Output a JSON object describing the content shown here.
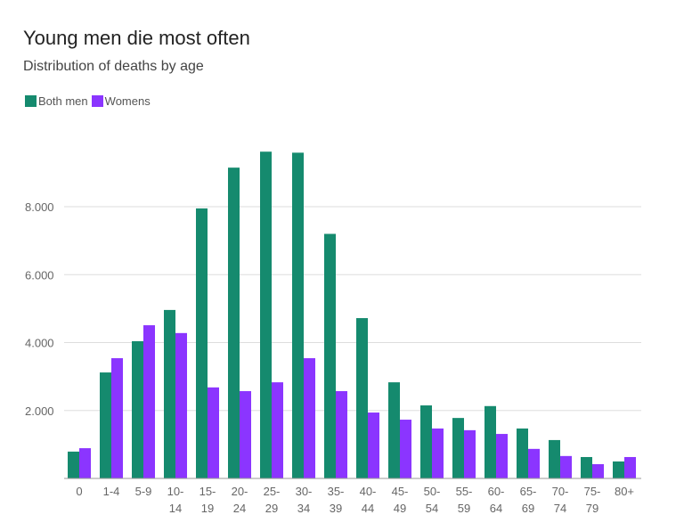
{
  "chart_data": {
    "type": "bar",
    "title": "Young men die most often",
    "subtitle": "Distribution of deaths by age",
    "xlabel": "",
    "ylabel": "",
    "ylim": [
      0,
      10000
    ],
    "yticks": [
      2000,
      4000,
      6000,
      8000
    ],
    "ytick_labels": [
      "2.000",
      "4.000",
      "6.000",
      "8.000"
    ],
    "grid": true,
    "legend_position": "top-left",
    "categories": [
      [
        "0"
      ],
      [
        "1-4"
      ],
      [
        "5-9"
      ],
      [
        "10-",
        "14"
      ],
      [
        "15-",
        "19"
      ],
      [
        "20-",
        "24"
      ],
      [
        "25-",
        "29"
      ],
      [
        "30-",
        "34"
      ],
      [
        "35-",
        "39"
      ],
      [
        "40-",
        "44"
      ],
      [
        "45-",
        "49"
      ],
      [
        "50-",
        "54"
      ],
      [
        "55-",
        "59"
      ],
      [
        "60-",
        "64"
      ],
      [
        "65-",
        "69"
      ],
      [
        "70-",
        "74"
      ],
      [
        "75-",
        "79"
      ],
      [
        "80+"
      ]
    ],
    "series": [
      {
        "name": "Both men",
        "color": "#158a6e",
        "values": [
          790,
          3120,
          4040,
          4960,
          7950,
          9150,
          9620,
          9590,
          7200,
          4720,
          2830,
          2150,
          1780,
          2130,
          1470,
          1130,
          630,
          500
        ]
      },
      {
        "name": "Womens",
        "color": "#8b35ff",
        "values": [
          890,
          3540,
          4510,
          4280,
          2680,
          2570,
          2830,
          3540,
          2570,
          1940,
          1730,
          1470,
          1420,
          1310,
          870,
          660,
          420,
          630
        ]
      }
    ]
  }
}
